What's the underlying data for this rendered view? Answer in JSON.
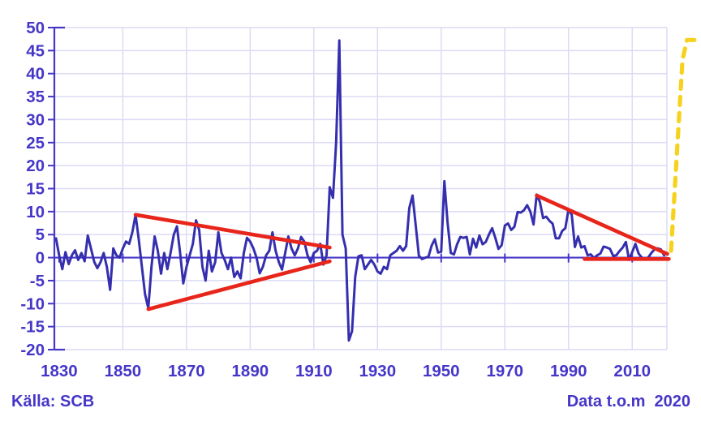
{
  "footer": {
    "source": "Källa: SCB",
    "note": "Data t.o.m  2020"
  },
  "chart_data": {
    "type": "line",
    "title": "",
    "xlabel": "",
    "ylabel": "",
    "grid": true,
    "legend": "none",
    "ylim": [
      -20,
      50
    ],
    "xlim": [
      1828.5,
      2020.9
    ],
    "y_ticks": [
      50,
      45,
      40,
      35,
      30,
      25,
      20,
      15,
      10,
      5,
      0,
      -5,
      -10,
      -15,
      -20
    ],
    "x_ticks": [
      1830,
      1850,
      1870,
      1890,
      1910,
      1930,
      1950,
      1970,
      1990,
      2010
    ],
    "colors": {
      "series": "#352fae",
      "axis": "#4636c8",
      "grid": "#dcdbf4",
      "trend": "#e8251a",
      "projection": "#f6d21f"
    },
    "series": [
      {
        "name": "annual-change-percent",
        "color": "#352fae",
        "start_year": 1829,
        "values": [
          4.2,
          0.5,
          -2.5,
          1.2,
          -1.4,
          0.5,
          1.6,
          -0.5,
          1.0,
          -0.8,
          4.8,
          2.0,
          -0.9,
          -2.3,
          -1.0,
          1.0,
          -2.0,
          -7.0,
          2.0,
          0.5,
          0.0,
          2.0,
          3.5,
          3.0,
          5.5,
          9.3,
          4.0,
          -2.0,
          -8.0,
          -11.0,
          -2.0,
          4.6,
          1.5,
          -3.5,
          1.0,
          -2.5,
          1.0,
          5.0,
          6.8,
          1.0,
          -5.6,
          -2.0,
          0.5,
          3.0,
          8.1,
          6.0,
          -2.0,
          -5.0,
          1.5,
          -3.0,
          -1.0,
          5.5,
          1.0,
          -0.5,
          -2.5,
          0.0,
          -4.2,
          -3.0,
          -4.5,
          1.0,
          4.3,
          3.5,
          2.0,
          0.0,
          -3.4,
          -2.0,
          0.5,
          1.5,
          5.5,
          1.5,
          -1.0,
          -2.6,
          1.0,
          4.6,
          2.0,
          0.5,
          2.0,
          4.5,
          3.5,
          0.5,
          -1.0,
          1.0,
          1.5,
          3.0,
          -1.5,
          0.5,
          15.3,
          13.0,
          25.0,
          47.2,
          5.0,
          2.0,
          -18.0,
          -16.0,
          -4.2,
          0.3,
          0.5,
          -2.5,
          -1.5,
          -0.5,
          -1.5,
          -3.0,
          -3.5,
          -2.0,
          -2.5,
          0.5,
          1.0,
          1.5,
          2.5,
          1.5,
          2.5,
          10.8,
          13.5,
          7.0,
          0.4,
          -0.3,
          0.0,
          0.2,
          2.6,
          4.0,
          1.1,
          1.3,
          16.6,
          7.7,
          1.0,
          0.7,
          2.9,
          4.5,
          4.3,
          4.5,
          0.7,
          4.1,
          2.2,
          4.8,
          2.9,
          3.4,
          5.0,
          6.4,
          4.3,
          1.9,
          2.7,
          7.0,
          7.4,
          6.0,
          6.7,
          9.9,
          9.8,
          10.3,
          11.4,
          10.0,
          7.2,
          13.7,
          12.1,
          8.6,
          8.9,
          8.0,
          7.4,
          4.2,
          4.2,
          5.8,
          6.4,
          10.5,
          9.3,
          2.3,
          4.6,
          2.2,
          2.5,
          0.5,
          0.7,
          -0.1,
          0.5,
          0.9,
          2.4,
          2.2,
          1.9,
          0.4,
          0.5,
          1.4,
          2.2,
          3.4,
          -0.5,
          1.2,
          3.0,
          0.9,
          0.0,
          -0.2,
          0.0,
          1.0,
          1.8,
          2.0,
          1.8,
          0.5
        ]
      }
    ],
    "trendlines": [
      {
        "name": "wedge-upper-trendline",
        "color": "#e8251a",
        "points": [
          [
            1854,
            9.3
          ],
          [
            1915,
            2.2
          ]
        ]
      },
      {
        "name": "wedge-lower-trendline",
        "color": "#e8251a",
        "points": [
          [
            1858,
            -11.2
          ],
          [
            1915,
            -0.8
          ]
        ]
      },
      {
        "name": "decline-trendline",
        "color": "#e8251a",
        "points": [
          [
            1980,
            13.5
          ],
          [
            2021,
            0.8
          ]
        ]
      },
      {
        "name": "floor-trendline",
        "color": "#e8251a",
        "points": [
          [
            1995,
            -0.3
          ],
          [
            2021.5,
            -0.3
          ]
        ]
      }
    ],
    "projection": {
      "name": "projection-dashed-line",
      "color": "#f6d21f",
      "style": "dashed",
      "points": [
        [
          2022.2,
          1.5
        ],
        [
          2025.8,
          43.0
        ],
        [
          2027.2,
          47.3
        ],
        [
          2030.2,
          47.3
        ]
      ]
    }
  }
}
